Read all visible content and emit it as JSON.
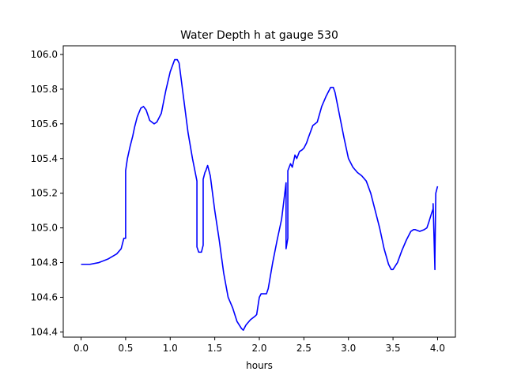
{
  "chart_data": {
    "type": "line",
    "title": "Water Depth h at gauge 530",
    "xlabel": "hours",
    "ylabel": "",
    "xlim": [
      -0.2,
      4.2
    ],
    "ylim": [
      104.37,
      106.05
    ],
    "xticks": [
      0.0,
      0.5,
      1.0,
      1.5,
      2.0,
      2.5,
      3.0,
      3.5,
      4.0
    ],
    "xtick_labels": [
      "0.0",
      "0.5",
      "1.0",
      "1.5",
      "2.0",
      "2.5",
      "3.0",
      "3.5",
      "4.0"
    ],
    "yticks": [
      104.4,
      104.6,
      104.8,
      105.0,
      105.2,
      105.4,
      105.6,
      105.8,
      106.0
    ],
    "ytick_labels": [
      "104.4",
      "104.6",
      "104.8",
      "105.0",
      "105.2",
      "105.4",
      "105.6",
      "105.8",
      "106.0"
    ],
    "grid": false,
    "series": [
      {
        "color": "#0000ff",
        "x": [
          0.0,
          0.1,
          0.2,
          0.3,
          0.4,
          0.45,
          0.48,
          0.5,
          0.5,
          0.52,
          0.55,
          0.58,
          0.6,
          0.63,
          0.67,
          0.7,
          0.73,
          0.77,
          0.82,
          0.85,
          0.9,
          0.95,
          1.0,
          1.05,
          1.08,
          1.1,
          1.15,
          1.2,
          1.25,
          1.3,
          1.3,
          1.32,
          1.35,
          1.37,
          1.37,
          1.39,
          1.4,
          1.42,
          1.45,
          1.48,
          1.5,
          1.55,
          1.6,
          1.65,
          1.7,
          1.75,
          1.8,
          1.82,
          1.85,
          1.9,
          1.95,
          1.97,
          2.0,
          2.02,
          2.05,
          2.08,
          2.1,
          2.15,
          2.2,
          2.25,
          2.3,
          2.3,
          2.32,
          2.32,
          2.35,
          2.37,
          2.4,
          2.42,
          2.45,
          2.48,
          2.5,
          2.53,
          2.55,
          2.6,
          2.65,
          2.7,
          2.75,
          2.8,
          2.83,
          2.85,
          2.9,
          2.95,
          3.0,
          3.05,
          3.1,
          3.15,
          3.2,
          3.25,
          3.3,
          3.35,
          3.4,
          3.45,
          3.48,
          3.5,
          3.55,
          3.6,
          3.65,
          3.7,
          3.73,
          3.75,
          3.8,
          3.85,
          3.88,
          3.9,
          3.93,
          3.95,
          3.95,
          3.97,
          3.97,
          3.98,
          4.0
        ],
        "y": [
          104.79,
          104.79,
          104.8,
          104.82,
          104.85,
          104.88,
          104.94,
          104.94,
          105.33,
          105.4,
          105.47,
          105.53,
          105.58,
          105.64,
          105.69,
          105.7,
          105.68,
          105.62,
          105.6,
          105.61,
          105.66,
          105.79,
          105.9,
          105.97,
          105.97,
          105.95,
          105.75,
          105.55,
          105.4,
          105.27,
          104.89,
          104.86,
          104.86,
          104.9,
          105.28,
          105.32,
          105.33,
          105.36,
          105.3,
          105.18,
          105.1,
          104.93,
          104.74,
          104.6,
          104.54,
          104.46,
          104.42,
          104.41,
          104.44,
          104.47,
          104.49,
          104.5,
          104.6,
          104.62,
          104.62,
          104.62,
          104.65,
          104.8,
          104.93,
          105.05,
          105.26,
          104.88,
          104.94,
          105.33,
          105.37,
          105.35,
          105.42,
          105.4,
          105.44,
          105.45,
          105.46,
          105.49,
          105.52,
          105.59,
          105.61,
          105.7,
          105.76,
          105.81,
          105.81,
          105.78,
          105.65,
          105.52,
          105.4,
          105.35,
          105.32,
          105.3,
          105.27,
          105.2,
          105.1,
          105.0,
          104.88,
          104.79,
          104.76,
          104.76,
          104.8,
          104.87,
          104.93,
          104.98,
          104.99,
          104.99,
          104.98,
          104.99,
          105.0,
          105.03,
          105.08,
          105.11,
          105.14,
          104.76,
          104.82,
          105.2,
          105.24
        ]
      }
    ]
  }
}
